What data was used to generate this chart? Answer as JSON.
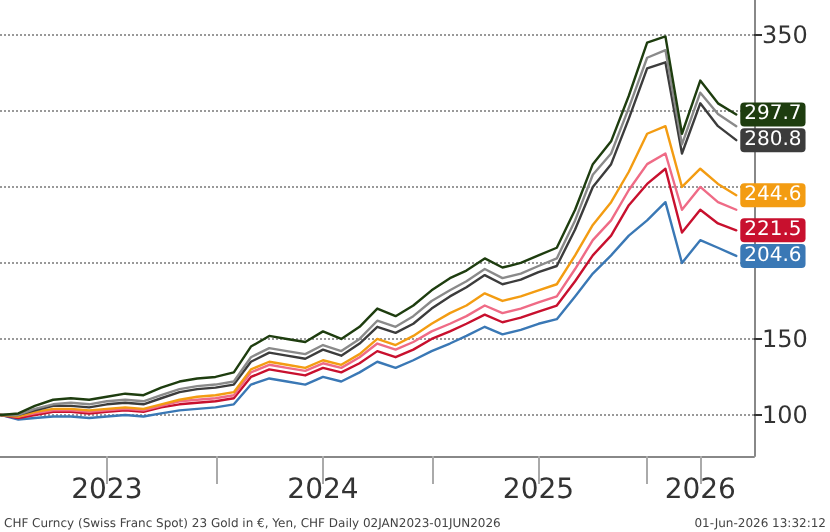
{
  "chart_data": {
    "type": "line",
    "marker": "none",
    "line_style": "solid",
    "grid": "y",
    "annotations": [
      "CHF Curncy (Swiss Franc Spot) 23 Gold in €, Yen, CHF Daily 02JAN2023-01JUN2026",
      "01-Jun-2026 13:32:12"
    ],
    "x": [
      "2023-01-02",
      "2023-02",
      "2023-03",
      "2023-04",
      "2023-05",
      "2023-06",
      "2023-07",
      "2023-08",
      "2023-09",
      "2023-10",
      "2023-11",
      "2023-12",
      "2024-01",
      "2024-02",
      "2024-03",
      "2024-04",
      "2024-05",
      "2024-06",
      "2024-07",
      "2024-08",
      "2024-09",
      "2024-10",
      "2024-11",
      "2024-12",
      "2025-01",
      "2025-02",
      "2025-03",
      "2025-04",
      "2025-05",
      "2025-06",
      "2025-07",
      "2025-08",
      "2025-09",
      "2025-10",
      "2025-11",
      "2025-12",
      "2026-01",
      "2026-02",
      "2026-03",
      "2026-04",
      "2026-05",
      "2026-06-01"
    ],
    "xlim": [
      "2023-01-01",
      "2026-07-01"
    ],
    "xticks": [
      {
        "value": "2023-07-01",
        "label": "2023"
      },
      {
        "value": "2024-01-01",
        "label": null
      },
      {
        "value": "2024-07-01",
        "label": "2024"
      },
      {
        "value": "2025-01-01",
        "label": null
      },
      {
        "value": "2025-07-01",
        "label": "2025"
      },
      {
        "value": "2026-01-01",
        "label": null
      },
      {
        "value": "2026-04-01",
        "label": "2026"
      }
    ],
    "ylim": [
      73,
      373
    ],
    "yticks": [
      100,
      150,
      {
        "value": 200,
        "label": null
      },
      {
        "value": 250,
        "label": null
      },
      {
        "value": 300,
        "label": null
      },
      350
    ],
    "series": [
      {
        "color": "#1e3d0f",
        "values": [
          100,
          101,
          106,
          110,
          111,
          110,
          112,
          114,
          113,
          118,
          122,
          124,
          125,
          128,
          145,
          152,
          150,
          148,
          155,
          150,
          158,
          170,
          165,
          172,
          182,
          190,
          195,
          203,
          197,
          200,
          205,
          210,
          235,
          265,
          280,
          310,
          345,
          349,
          285,
          320,
          305,
          297.7
        ],
        "value_labels": [
          null,
          null,
          null,
          null,
          null,
          null,
          null,
          null,
          null,
          null,
          null,
          null,
          null,
          null,
          null,
          null,
          null,
          null,
          null,
          null,
          null,
          null,
          null,
          null,
          null,
          null,
          null,
          null,
          null,
          null,
          null,
          null,
          null,
          null,
          null,
          null,
          null,
          null,
          null,
          null,
          null,
          "297.7"
        ]
      },
      {
        "color": "#8a8a8a",
        "values": [
          100,
          100,
          104,
          107,
          108,
          107,
          109,
          110,
          109,
          113,
          117,
          119,
          120,
          122,
          138,
          144,
          142,
          140,
          146,
          142,
          150,
          162,
          158,
          165,
          175,
          182,
          188,
          196,
          190,
          193,
          198,
          203,
          228,
          258,
          272,
          302,
          335,
          340,
          278,
          312,
          298,
          290
        ]
      },
      {
        "color": "#3c3c3c",
        "values": [
          100,
          100,
          103,
          106,
          106,
          105,
          107,
          108,
          107,
          111,
          115,
          117,
          118,
          120,
          135,
          141,
          139,
          137,
          143,
          139,
          147,
          158,
          154,
          160,
          170,
          178,
          184,
          192,
          186,
          189,
          194,
          198,
          222,
          250,
          265,
          295,
          328,
          332,
          272,
          305,
          290,
          280.8
        ],
        "value_labels": [
          null,
          null,
          null,
          null,
          null,
          null,
          null,
          null,
          null,
          null,
          null,
          null,
          null,
          null,
          null,
          null,
          null,
          null,
          null,
          null,
          null,
          null,
          null,
          null,
          null,
          null,
          null,
          null,
          null,
          null,
          null,
          null,
          null,
          null,
          null,
          null,
          null,
          null,
          null,
          null,
          null,
          "280.8"
        ]
      },
      {
        "color": "#f39c12",
        "values": [
          100,
          99,
          102,
          104,
          104,
          103,
          104,
          105,
          104,
          107,
          110,
          112,
          113,
          115,
          130,
          135,
          133,
          131,
          136,
          133,
          140,
          150,
          146,
          152,
          160,
          167,
          172,
          180,
          175,
          178,
          182,
          186,
          205,
          225,
          240,
          260,
          285,
          290,
          250,
          262,
          252,
          244.6
        ],
        "value_labels": [
          null,
          null,
          null,
          null,
          null,
          null,
          null,
          null,
          null,
          null,
          null,
          null,
          null,
          null,
          null,
          null,
          null,
          null,
          null,
          null,
          null,
          null,
          null,
          null,
          null,
          null,
          null,
          null,
          null,
          null,
          null,
          null,
          null,
          null,
          null,
          null,
          null,
          null,
          null,
          null,
          null,
          "244.6"
        ]
      },
      {
        "color": "#ef6b86",
        "values": [
          100,
          99,
          101,
          103,
          103,
          102,
          103,
          104,
          103,
          106,
          109,
          110,
          111,
          113,
          128,
          133,
          131,
          129,
          134,
          131,
          138,
          147,
          143,
          148,
          155,
          160,
          165,
          172,
          167,
          170,
          174,
          178,
          196,
          215,
          228,
          248,
          265,
          272,
          235,
          250,
          240,
          235
        ]
      },
      {
        "color": "#c8102e",
        "values": [
          100,
          98,
          100,
          102,
          102,
          101,
          102,
          103,
          102,
          105,
          107,
          108,
          109,
          111,
          125,
          130,
          128,
          126,
          131,
          128,
          134,
          142,
          138,
          143,
          150,
          155,
          160,
          166,
          161,
          164,
          168,
          172,
          188,
          205,
          218,
          238,
          252,
          262,
          220,
          235,
          226,
          221.5
        ],
        "value_labels": [
          null,
          null,
          null,
          null,
          null,
          null,
          null,
          null,
          null,
          null,
          null,
          null,
          null,
          null,
          null,
          null,
          null,
          null,
          null,
          null,
          null,
          null,
          null,
          null,
          null,
          null,
          null,
          null,
          null,
          null,
          null,
          null,
          null,
          null,
          null,
          null,
          null,
          null,
          null,
          null,
          null,
          "221.5"
        ]
      },
      {
        "color": "#3a78b5",
        "values": [
          100,
          97,
          98,
          99,
          99,
          98,
          99,
          100,
          99,
          101,
          103,
          104,
          105,
          107,
          120,
          124,
          122,
          120,
          125,
          122,
          128,
          135,
          131,
          136,
          142,
          147,
          152,
          158,
          153,
          156,
          160,
          163,
          178,
          193,
          205,
          218,
          228,
          240,
          200,
          215,
          210,
          204.6
        ],
        "value_labels": [
          null,
          null,
          null,
          null,
          null,
          null,
          null,
          null,
          null,
          null,
          null,
          null,
          null,
          null,
          null,
          null,
          null,
          null,
          null,
          null,
          null,
          null,
          null,
          null,
          null,
          null,
          null,
          null,
          null,
          null,
          null,
          null,
          null,
          null,
          null,
          null,
          null,
          null,
          null,
          null,
          null,
          "204.6"
        ]
      }
    ]
  }
}
